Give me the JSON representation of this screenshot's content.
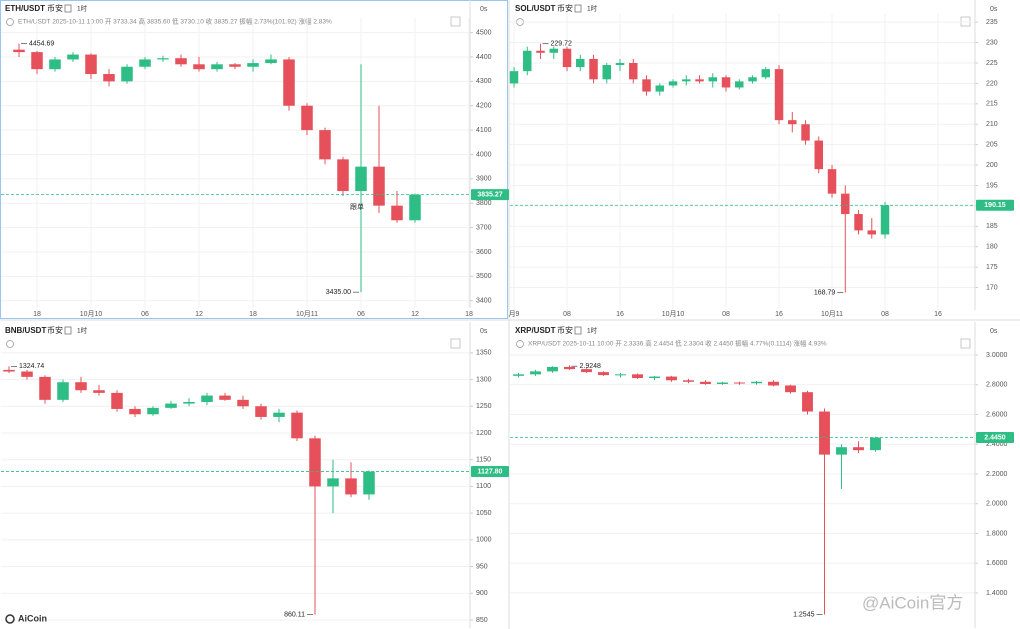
{
  "chart_data": [
    {
      "type": "candlestick",
      "title": "ETH/USDT",
      "exchange": "币安",
      "interval": "1时",
      "countdown": "0s",
      "info": "ETH/USDT 2025-10-11 10:00 开 3733.34 高 3835.60 低 3730.10 收 3835.27 振幅 2.73%(101.92) 涨幅 2.83%",
      "annotation": "跟单",
      "categories": [
        null,
        "18",
        null,
        null,
        "10月10",
        null,
        null,
        "06",
        null,
        null,
        "12",
        null,
        null,
        "18",
        null,
        null,
        "10月11",
        null,
        null,
        "06",
        null,
        null,
        "12",
        null,
        null,
        "18"
      ],
      "open": [
        4430,
        4420,
        4350,
        4390,
        4410,
        4330,
        4300,
        4360,
        4390,
        4395,
        4370,
        4350,
        4370,
        4360,
        4375,
        4390,
        4200,
        4100,
        3980,
        3850,
        3950,
        3790,
        3730,
        null,
        null,
        null
      ],
      "high": [
        4454.69,
        4425,
        4400,
        4420,
        4415,
        4350,
        4370,
        4400,
        4405,
        4410,
        4400,
        4380,
        4375,
        4390,
        4410,
        4400,
        4210,
        4110,
        3990,
        4370,
        4200,
        3850,
        3840,
        null,
        null,
        null
      ],
      "low": [
        4400,
        4330,
        4340,
        4380,
        4310,
        4280,
        4290,
        4350,
        4380,
        4360,
        4340,
        4340,
        4350,
        4340,
        4370,
        4180,
        4080,
        3960,
        3830,
        3435,
        3760,
        3720,
        3720,
        null,
        null,
        null
      ],
      "close": [
        4420,
        4350,
        4390,
        4410,
        4330,
        4300,
        4360,
        4390,
        4395,
        4370,
        4350,
        4370,
        4360,
        4375,
        4390,
        4200,
        4100,
        3980,
        3850,
        3950,
        3790,
        3730,
        3835.27,
        null,
        null,
        null
      ],
      "price": 3835.27,
      "high_label": 4454.69,
      "low_label": {
        "value": 3435,
        "label": "3435.00"
      },
      "ylim": [
        3370,
        4560
      ],
      "yticks": [
        3400,
        3500,
        3600,
        3700,
        3800,
        3900,
        4000,
        4100,
        4200,
        4300,
        4400,
        4500
      ],
      "up_color": "#2ebd85",
      "down_color": "#e5505a",
      "grid": true
    },
    {
      "type": "candlestick",
      "title": "SOL/USDT",
      "exchange": "币安",
      "interval": "1时",
      "countdown": "0s",
      "categories": [
        "月9",
        null,
        null,
        null,
        "08",
        null,
        null,
        null,
        "16",
        null,
        null,
        null,
        "10月10",
        null,
        null,
        null,
        "08",
        null,
        null,
        null,
        "16",
        null,
        null,
        null,
        "10月11",
        null,
        null,
        null,
        "08",
        null,
        null,
        null,
        "16",
        null,
        null
      ],
      "open": [
        220,
        223,
        228,
        227.5,
        228.5,
        224,
        226,
        221,
        224.5,
        225,
        221,
        218,
        219.5,
        220.5,
        221,
        220.5,
        221.5,
        219,
        220.5,
        221.5,
        223.5,
        211,
        210,
        206,
        199,
        193,
        188,
        184,
        183,
        null,
        null,
        null,
        null,
        null,
        null
      ],
      "high": [
        224,
        229,
        229.72,
        229,
        229,
        227,
        227,
        225,
        226,
        226,
        222,
        220,
        221,
        222,
        222,
        222.5,
        222,
        221,
        222,
        224,
        224.5,
        213,
        211,
        207,
        200,
        195,
        189,
        187,
        191,
        null,
        null,
        null,
        null,
        null,
        null
      ],
      "low": [
        219,
        222,
        226,
        226,
        223,
        223,
        220,
        220,
        223,
        220,
        217,
        217,
        219,
        219.5,
        220,
        219,
        218,
        218.5,
        220,
        221,
        210,
        208,
        205,
        198,
        192,
        168.79,
        183,
        182,
        182,
        null,
        null,
        null,
        null,
        null,
        null
      ],
      "close": [
        223,
        228,
        227.5,
        228.5,
        224,
        226,
        221,
        224.5,
        225,
        221,
        218,
        219.5,
        220.5,
        221,
        220.5,
        221.5,
        219,
        220.5,
        221.5,
        223.5,
        211,
        210,
        206,
        199,
        193,
        188,
        184,
        183,
        190.15,
        null,
        null,
        null,
        null,
        null,
        null
      ],
      "price": 190.15,
      "high_label": 229.72,
      "low_label": 168.79,
      "ylim": [
        164.5,
        237
      ],
      "yticks": [
        170,
        175,
        180,
        185,
        190,
        195,
        200,
        205,
        210,
        215,
        220,
        225,
        230,
        235
      ],
      "up_color": "#2ebd85",
      "down_color": "#e5505a",
      "grid": true
    },
    {
      "type": "candlestick",
      "title": "BNB/USDT",
      "exchange": "币安",
      "interval": "1时",
      "countdown": "0s",
      "open": [
        1318,
        1315,
        1305,
        1262,
        1295,
        1280,
        1275,
        1245,
        1235,
        1247,
        1255,
        1258,
        1270,
        1262,
        1250,
        1230,
        1238,
        1190,
        1100,
        1115,
        1085
      ],
      "high": [
        1324.74,
        1318,
        1308,
        1300,
        1305,
        1290,
        1280,
        1250,
        1250,
        1260,
        1265,
        1275,
        1275,
        1270,
        1255,
        1245,
        1242,
        1195,
        1150,
        1145,
        1130
      ],
      "low": [
        1312,
        1300,
        1255,
        1258,
        1275,
        1270,
        1240,
        1230,
        1232,
        1245,
        1250,
        1252,
        1260,
        1245,
        1225,
        1220,
        1185,
        860.11,
        1050,
        1080,
        1075
      ],
      "close": [
        1315,
        1305,
        1262,
        1295,
        1280,
        1275,
        1245,
        1235,
        1247,
        1255,
        1258,
        1270,
        1262,
        1250,
        1230,
        1238,
        1190,
        1100,
        1115,
        1085,
        1127.8
      ],
      "price": {
        "value": 1127.8,
        "label": "1127.80"
      },
      "high_label": 1324.74,
      "low_label": 860.11,
      "ylim": [
        835,
        1374
      ],
      "yticks": [
        850,
        900,
        950,
        1000,
        1050,
        1100,
        1150,
        1200,
        1250,
        1300,
        1350
      ],
      "up_color": "#2ebd85",
      "down_color": "#e5505a",
      "grid": true
    },
    {
      "type": "candlestick",
      "title": "XRP/USDT",
      "exchange": "币安",
      "interval": "1时",
      "countdown": "0s",
      "info": "XRP/USDT 2025-10-11 10:00 开 2.3336 高 2.4454 低 2.3304 收 2.4450 振幅 4.77%(0.1114) 涨幅 4.93%",
      "open": [
        2.86,
        2.87,
        2.89,
        2.92,
        2.905,
        2.885,
        2.865,
        2.87,
        2.845,
        2.855,
        2.83,
        2.82,
        2.805,
        2.815,
        2.81,
        2.82,
        2.795,
        2.75,
        2.62,
        2.33,
        2.38,
        2.36
      ],
      "high": [
        2.88,
        2.9,
        2.9248,
        2.93,
        2.91,
        2.89,
        2.88,
        2.875,
        2.86,
        2.86,
        2.84,
        2.83,
        2.82,
        2.82,
        2.825,
        2.83,
        2.8,
        2.76,
        2.64,
        2.4,
        2.42,
        2.45
      ],
      "low": [
        2.85,
        2.86,
        2.88,
        2.9,
        2.88,
        2.86,
        2.85,
        2.84,
        2.83,
        2.82,
        2.81,
        2.8,
        2.8,
        2.8,
        2.8,
        2.79,
        2.74,
        2.6,
        1.2545,
        2.1,
        2.34,
        2.35
      ],
      "close": [
        2.87,
        2.89,
        2.92,
        2.905,
        2.885,
        2.865,
        2.87,
        2.845,
        2.855,
        2.83,
        2.82,
        2.805,
        2.815,
        2.81,
        2.82,
        2.795,
        2.75,
        2.62,
        2.33,
        2.38,
        2.36,
        2.445
      ],
      "price": {
        "value": 2.445,
        "label": "2.4450"
      },
      "high_label": 2.9248,
      "low_label": 1.2545,
      "ylim": [
        1.164,
        3.101
      ],
      "yticks": [
        {
          "value": 1.4,
          "label": "1.4000"
        },
        {
          "value": 1.6,
          "label": "1.6000"
        },
        {
          "value": 1.8,
          "label": "1.8000"
        },
        {
          "value": 2,
          "label": "2.0000"
        },
        {
          "value": 2.2,
          "label": "2.2000"
        },
        {
          "value": 2.4,
          "label": "2.4000"
        },
        {
          "value": 2.6,
          "label": "2.6000"
        },
        {
          "value": 2.8,
          "label": "2.8000"
        },
        {
          "value": 3,
          "label": "3.0000"
        }
      ],
      "up_color": "#2ebd85",
      "down_color": "#e5505a",
      "grid": true
    }
  ],
  "branding": {
    "logo": "AiCoin",
    "watermark": "@AiCoin官方"
  }
}
